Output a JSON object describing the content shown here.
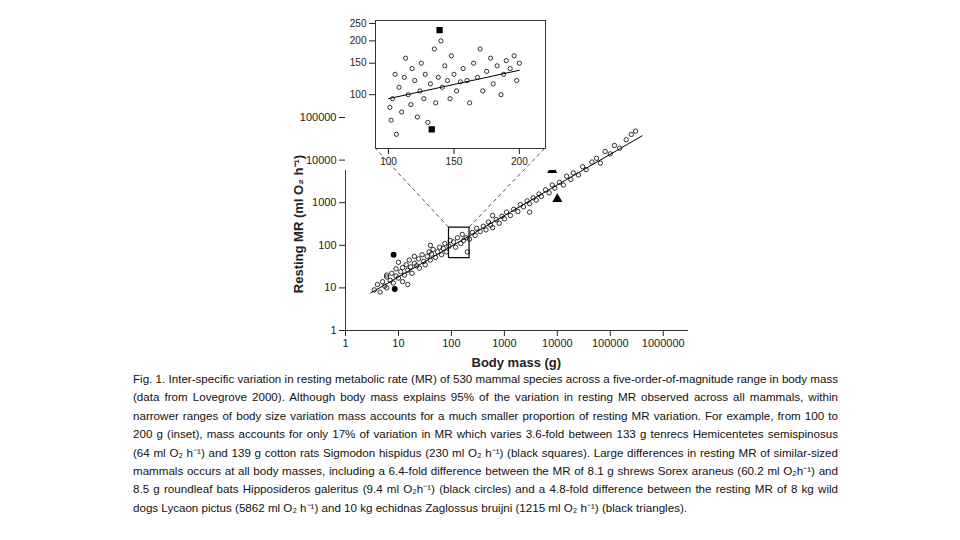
{
  "caption": "Fig. 1. Inter-specific variation in resting metabolic rate (MR) of 530 mammal species across a five-order-of-magnitude range in body mass (data from Lovegrove 2000). Although body mass explains 95% of the variation in resting MR observed across all mammals, within narrower ranges of body size variation mass accounts for a much smaller proportion of resting MR variation. For example, from 100 to 200 g (inset), mass accounts for only 17% of variation in MR which varies 3.6-fold between 133 g tenrecs Hemicentetes semispinosus (64 ml O₂ h⁻¹) and 139 g cotton rats Sigmodon hispidus (230 ml O₂ h⁻¹) (black squares). Large differences in resting MR of similar-sized mammals occurs at all body masses, including a 6.4-fold difference between the MR of 8.1 g shrews Sorex araneus (60.2 ml O₂h⁻¹) and 8.5 g roundleaf bats Hipposideros galeritus (9.4 ml O₂h⁻¹) (black circles) and a 4.8-fold difference between the resting MR of 8 kg wild dogs Lycaon pictus (5862 ml O₂ h⁻¹) and 10 kg echidnas Zaglossus bruijni (1215 ml O₂ h⁻¹) (black triangles).",
  "chart_data": [
    {
      "type": "scatter",
      "x_label": "Body mass (g)",
      "y_label": "Resting MR (ml O₂ h⁻¹)",
      "log": true,
      "grid": false,
      "xlim": [
        1,
        3000000
      ],
      "ylim": [
        1,
        100000
      ],
      "xticks": [
        1,
        10,
        100,
        1000,
        10000,
        100000,
        1000000
      ],
      "yticks": [
        1,
        10,
        100,
        1000,
        10000,
        100000
      ],
      "series": [
        {
          "marker": "circle",
          "color": "#000000",
          "x": [
            3.5,
            4,
            4.5,
            5,
            5.5,
            6,
            6,
            7,
            7.5,
            8,
            9,
            9,
            10,
            10,
            11,
            12,
            13,
            14,
            15,
            16,
            17,
            18,
            20,
            20,
            22,
            24,
            25,
            28,
            30,
            32,
            35,
            38,
            40,
            42,
            45,
            50,
            55,
            60,
            65,
            70,
            75,
            80,
            90,
            95,
            110,
            120,
            130,
            150,
            160,
            170,
            190,
            220,
            250,
            280,
            300,
            350,
            400,
            450,
            500,
            550,
            600,
            700,
            800,
            900,
            1000,
            1100,
            1300,
            1500,
            1800,
            2000,
            2300,
            2700,
            3000,
            3500,
            4000,
            4500,
            5000,
            6000,
            7000,
            8000,
            9000,
            11000,
            13000,
            15000,
            18000,
            20000,
            25000,
            30000,
            35000,
            45000,
            55000,
            65000,
            80000,
            100000,
            120000,
            150000,
            200000,
            250000,
            300000,
            6,
            15,
            12,
            40,
            200,
            600,
            3000
          ],
          "values": [
            9,
            12,
            8,
            14,
            11,
            18,
            10,
            15,
            22,
            13,
            19,
            28,
            17,
            40,
            24,
            30,
            20,
            35,
            26,
            45,
            31,
            22,
            38,
            55,
            33,
            48,
            29,
            60,
            42,
            35,
            55,
            70,
            45,
            62,
            80,
            52,
            70,
            90,
            60,
            85,
            110,
            70,
            95,
            130,
            120,
            90,
            150,
            110,
            180,
            130,
            150,
            140,
            200,
            170,
            250,
            210,
            280,
            230,
            350,
            300,
            260,
            400,
            330,
            480,
            420,
            600,
            500,
            700,
            620,
            900,
            800,
            1100,
            950,
            1300,
            1150,
            1600,
            1400,
            2000,
            1700,
            2600,
            2200,
            3000,
            2600,
            4200,
            3500,
            5000,
            4500,
            7000,
            6000,
            9000,
            11000,
            8500,
            16000,
            14000,
            22000,
            19000,
            30000,
            40000,
            48000,
            20,
            12,
            14,
            100,
            70,
            500,
            600
          ]
        },
        {
          "marker": "filled_circle",
          "color": "#000000",
          "x": [
            8.1,
            8.5
          ],
          "values": [
            60.2,
            9.4
          ]
        },
        {
          "marker": "triangle",
          "color": "#000000",
          "x": [
            8000,
            10000
          ],
          "values": [
            5862,
            1215
          ]
        },
        {
          "type": "line",
          "color": "#000000",
          "x": [
            3,
            400000
          ],
          "values": [
            7.6,
            37200
          ]
        }
      ]
    },
    {
      "type": "scatter",
      "log": "y",
      "grid": false,
      "xlim": [
        90,
        220
      ],
      "ylim": [
        50,
        260
      ],
      "xticks": [
        100,
        150,
        200
      ],
      "yticks": [
        100,
        150,
        200,
        250
      ],
      "series": [
        {
          "marker": "circle",
          "color": "#000000",
          "x": [
            101,
            102,
            103,
            105,
            106,
            108,
            110,
            112,
            113,
            115,
            117,
            118,
            120,
            122,
            124,
            125,
            127,
            128,
            130,
            132,
            135,
            136,
            138,
            140,
            141,
            143,
            145,
            147,
            148,
            150,
            152,
            155,
            157,
            160,
            162,
            165,
            168,
            170,
            172,
            175,
            178,
            180,
            183,
            186,
            188,
            190,
            193,
            196,
            198,
            200
          ],
          "values": [
            85,
            72,
            95,
            130,
            60,
            110,
            80,
            125,
            160,
            100,
            88,
            140,
            120,
            75,
            105,
            150,
            95,
            130,
            70,
            115,
            180,
            90,
            125,
            200,
            110,
            145,
            120,
            95,
            165,
            130,
            105,
            118,
            140,
            120,
            90,
            150,
            125,
            180,
            105,
            135,
            160,
            115,
            145,
            100,
            130,
            155,
            140,
            165,
            120,
            150
          ]
        },
        {
          "marker": "square",
          "color": "#000000",
          "x": [
            133,
            139
          ],
          "values": [
            64,
            230
          ]
        },
        {
          "type": "line",
          "color": "#000000",
          "x": [
            100,
            200
          ],
          "values": [
            95,
            137
          ]
        }
      ]
    }
  ]
}
